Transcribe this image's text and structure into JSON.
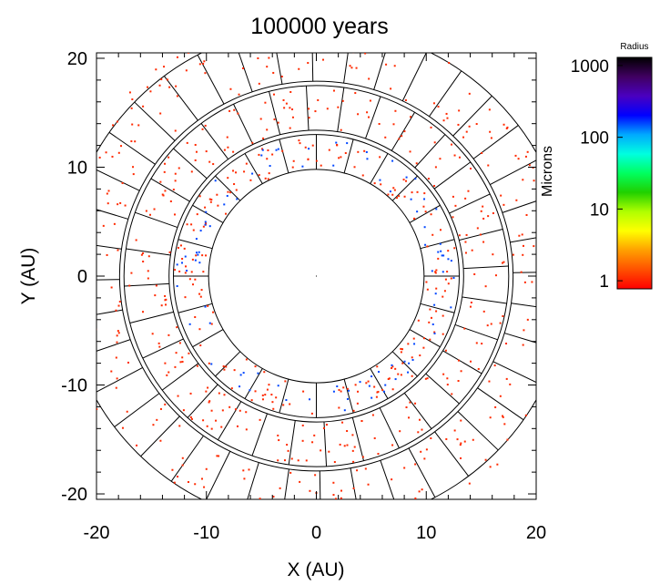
{
  "chart_data": {
    "type": "scatter",
    "title": "100000 years",
    "xlabel": "X (AU)",
    "ylabel": "Y (AU)",
    "xlim": [
      -20,
      20
    ],
    "ylim": [
      -20.5,
      20.5
    ],
    "xticks": [
      -20,
      -10,
      0,
      10,
      20
    ],
    "yticks": [
      20,
      10,
      0,
      -10,
      -20
    ],
    "grid": "polar cells",
    "grid_rings_au": [
      9.8,
      13.0,
      13.4,
      17.5,
      17.9,
      23.0
    ],
    "sectors": [
      24,
      32,
      40
    ],
    "sector_offsets_deg": [
      0,
      3,
      1
    ],
    "colorbar": {
      "title": "Radius",
      "unit": "Microns",
      "scale": "log",
      "range": [
        1,
        1000
      ],
      "ticks": [
        "1000",
        "100",
        "10",
        "1"
      ],
      "colors": [
        "#000000",
        "#400060",
        "#4a00c0",
        "#0000ff",
        "#00a8ff",
        "#00ffe0",
        "#00ff60",
        "#20d000",
        "#b0ff00",
        "#ffff00",
        "#ffa000",
        "#ff5000",
        "#ff0000"
      ]
    },
    "particle_colors": {
      "small": "#ff2a00",
      "large": "#0046ff"
    },
    "center_marker": [
      0,
      0
    ],
    "series": [
      {
        "ring_au": [
          9.9,
          12.9
        ],
        "color": "small",
        "count": 190
      },
      {
        "ring_au": [
          10.1,
          12.8
        ],
        "color": "large",
        "count": 90
      },
      {
        "ring_au": [
          13.5,
          17.4
        ],
        "color": "small",
        "count": 230
      },
      {
        "ring_au": [
          18.0,
          24.0
        ],
        "color": "small",
        "count": 300
      }
    ]
  }
}
